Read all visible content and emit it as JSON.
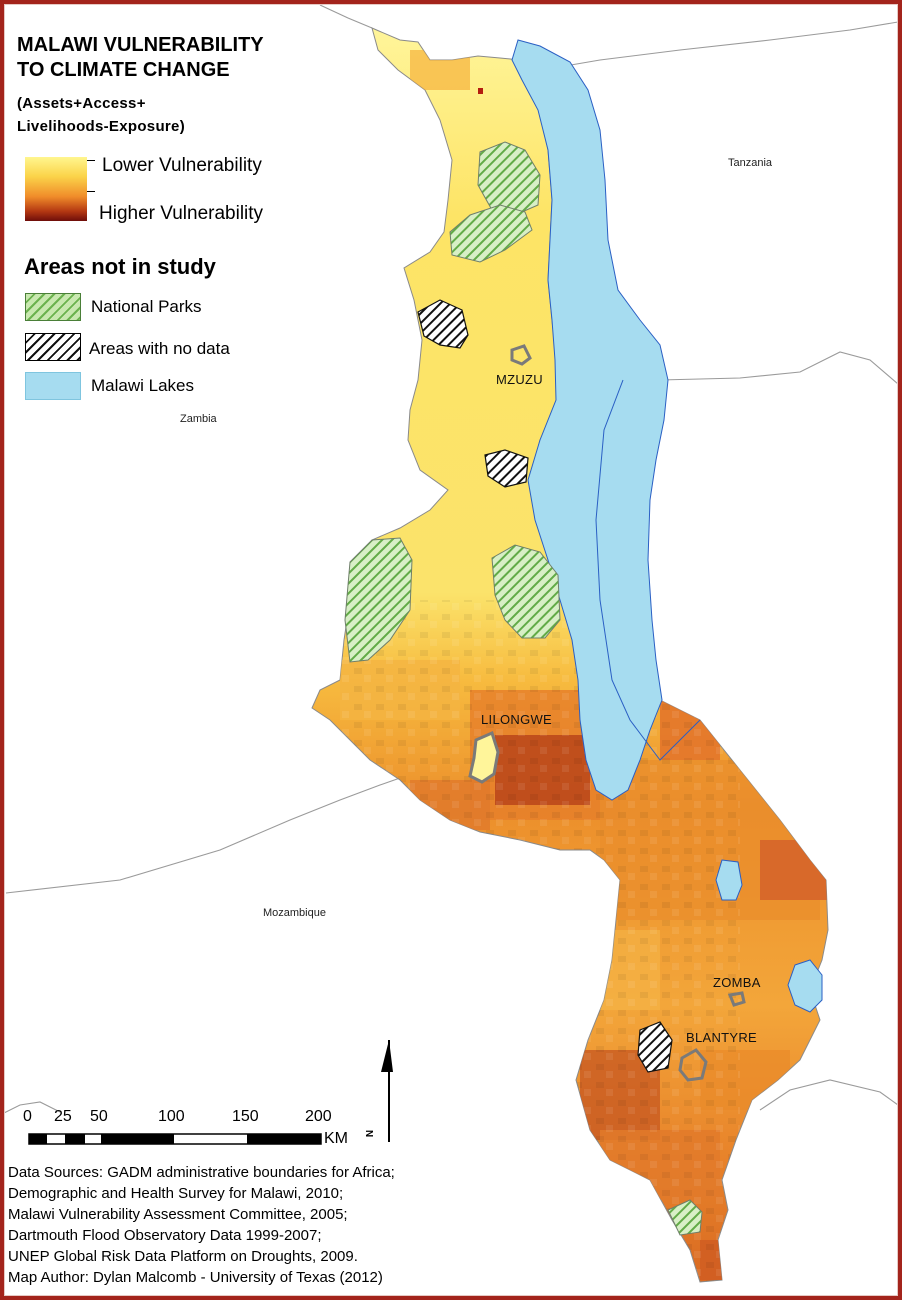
{
  "title_line1": "MALAWI VULNERABILITY",
  "title_line2": "TO CLIMATE CHANGE",
  "subtitle_line1": "(Assets+Access+",
  "subtitle_line2": "Livelihoods-Exposure)",
  "legend": {
    "low_label": "Lower Vulnerability",
    "high_label": "Higher Vulnerability",
    "section_title": "Areas not in study",
    "national_parks": "National Parks",
    "no_data": "Areas with no data",
    "lakes": "Malawi Lakes"
  },
  "countries": {
    "tanzania": "Tanzania",
    "zambia": "Zambia",
    "mozambique": "Mozambique"
  },
  "cities": {
    "mzuzu": "MZUZU",
    "lilongwe": "LILONGWE",
    "zomba": "ZOMBA",
    "blantyre": "BLANTYRE"
  },
  "scale": {
    "ticks": [
      "0",
      "25",
      "50",
      "100",
      "150",
      "200"
    ],
    "unit": "KM"
  },
  "north_label": "N",
  "sources": [
    "Data Sources: GADM administrative boundaries for Africa;",
    "Demographic and Health Survey for Malawi, 2010;",
    "Malawi Vulnerability Assessment Committee, 2005;",
    "Dartmouth Flood Observatory Data 1999-2007;",
    "UNEP Global Risk Data Platform on Droughts, 2009.",
    "Map Author:  Dylan Malcomb - University of Texas (2012)"
  ],
  "colors": {
    "frame": "#a3241c",
    "lake": "#a6dcf0",
    "lake_outline": "#2a5fc4",
    "low": "#fff68f",
    "mid": "#f6a634",
    "high": "#b33712",
    "park": "#6bb24e",
    "border": "#8c8c8c"
  }
}
